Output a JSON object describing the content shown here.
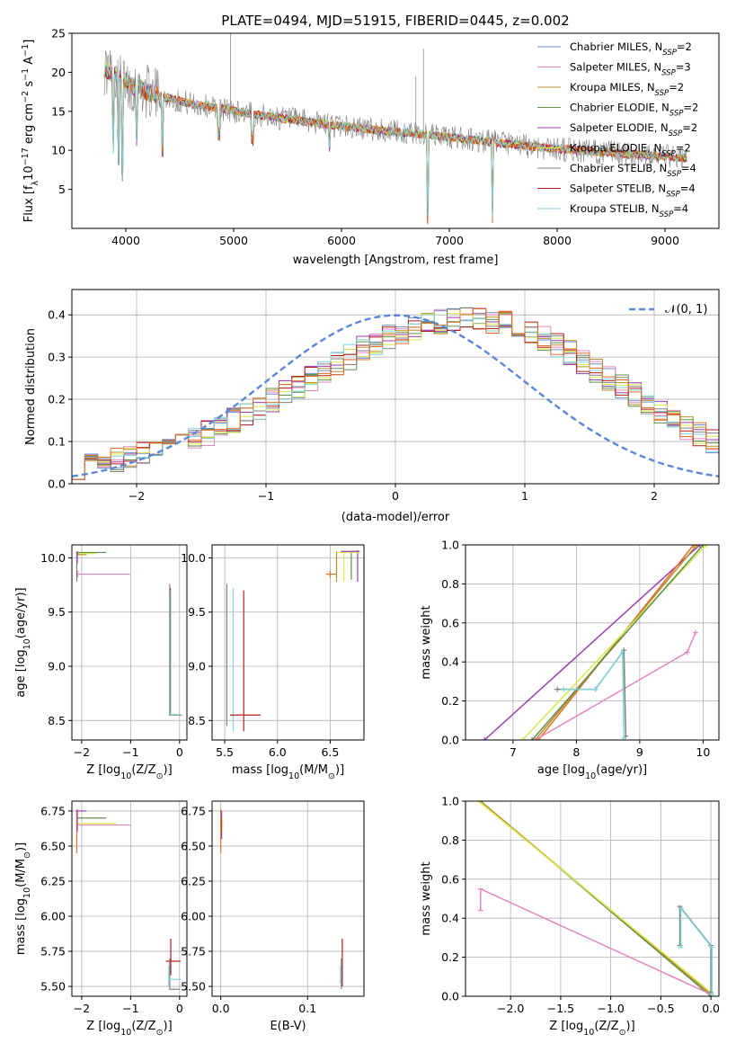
{
  "title": "PLATE=0494, MJD=51915, FIBERID=0445, z=0.002",
  "colors": {
    "blue": "#6a8fd0",
    "pink": "#e587c0",
    "olive": "#b8902a",
    "green": "#5f8f4a",
    "purple": "#9a3fb0",
    "yellow": "#d9e84f",
    "gray": "#808080",
    "red": "#b21f1f",
    "cyan": "#7fd3d6",
    "orange": "#e0702a",
    "dashblue": "#5b87d6"
  },
  "chart_data": [
    {
      "type": "line",
      "title": "PLATE=0494, MJD=51915, FIBERID=0445, z=0.002",
      "xlabel": "wavelength [Angstrom, rest frame]",
      "ylabel_parts": [
        "Flux [f",
        "λ",
        "10",
        "−17",
        " erg cm",
        "−2",
        " s",
        "−1",
        " A",
        "−1",
        "]"
      ],
      "xlim": [
        3500,
        9500
      ],
      "ylim": [
        0,
        25
      ],
      "xticks": [
        "4000",
        "5000",
        "6000",
        "7000",
        "8000",
        "9000"
      ],
      "yticks": [
        "5",
        "10",
        "15",
        "20",
        "25"
      ],
      "grid": false,
      "legend": "top-right",
      "continuum": [
        [
          3800,
          20.5
        ],
        [
          3950,
          19.2
        ],
        [
          4100,
          18.0
        ],
        [
          4300,
          17.0
        ],
        [
          4600,
          16.0
        ],
        [
          4900,
          15.3
        ],
        [
          5200,
          14.6
        ],
        [
          5600,
          13.8
        ],
        [
          6000,
          13.1
        ],
        [
          6400,
          12.5
        ],
        [
          6800,
          12.0
        ],
        [
          7200,
          11.4
        ],
        [
          7600,
          10.7
        ],
        [
          8000,
          10.2
        ],
        [
          8400,
          9.8
        ],
        [
          8800,
          9.4
        ],
        [
          9200,
          9.0
        ]
      ],
      "absorption_lines": [
        [
          3880,
          9.5
        ],
        [
          3934,
          8.0
        ],
        [
          3969,
          6.0
        ],
        [
          4102,
          10.5
        ],
        [
          4340,
          9.0
        ],
        [
          4861,
          11.0
        ],
        [
          5175,
          10.5
        ],
        [
          5890,
          9.5
        ],
        [
          6563,
          11.0
        ],
        [
          7400,
          0.5
        ],
        [
          6800,
          0.5
        ]
      ],
      "legend_entries": [
        {
          "label": "Chabrier MILES, N",
          "sub": "SSP",
          "suffix": "=2",
          "color": "#6a8fd0"
        },
        {
          "label": "Salpeter MILES, N",
          "sub": "SSP",
          "suffix": "=3",
          "color": "#e587c0"
        },
        {
          "label": "Kroupa MILES, N",
          "sub": "SSP",
          "suffix": "=2",
          "color": "#b8902a"
        },
        {
          "label": "Chabrier ELODIE, N",
          "sub": "SSP",
          "suffix": "=2",
          "color": "#5f8f4a"
        },
        {
          "label": "Salpeter ELODIE, N",
          "sub": "SSP",
          "suffix": "=2",
          "color": "#9a3fb0"
        },
        {
          "label": "Kroupa ELODIE, N",
          "sub": "SSP",
          "suffix": "=2",
          "color": "#d9e84f"
        },
        {
          "label": "Chabrier STELIB, N",
          "sub": "SSP",
          "suffix": "=4",
          "color": "#808080"
        },
        {
          "label": "Salpeter STELIB, N",
          "sub": "SSP",
          "suffix": "=4",
          "color": "#b21f1f"
        },
        {
          "label": "Kroupa STELIB, N",
          "sub": "SSP",
          "suffix": "=4",
          "color": "#7fd3d6"
        }
      ]
    },
    {
      "type": "histogram",
      "xlabel": "(data-model)/error",
      "ylabel": "Normed distribution",
      "xlim": [
        -2.5,
        2.5
      ],
      "ylim": [
        0,
        0.46
      ],
      "xticks": [
        "−2",
        "−1",
        "0",
        "1",
        "2"
      ],
      "yticks": [
        "0.0",
        "0.1",
        "0.2",
        "0.3",
        "0.4"
      ],
      "grid": true,
      "legend": "top-right",
      "bin_width": 0.1,
      "mean_profile": [
        0.04,
        0.045,
        0.05,
        0.055,
        0.06,
        0.07,
        0.08,
        0.09,
        0.1,
        0.11,
        0.12,
        0.135,
        0.15,
        0.165,
        0.18,
        0.2,
        0.215,
        0.23,
        0.25,
        0.27,
        0.285,
        0.3,
        0.32,
        0.335,
        0.35,
        0.36,
        0.37,
        0.38,
        0.385,
        0.39,
        0.395,
        0.39,
        0.385,
        0.38,
        0.37,
        0.36,
        0.345,
        0.33,
        0.31,
        0.29,
        0.27,
        0.25,
        0.23,
        0.21,
        0.19,
        0.17,
        0.15,
        0.13,
        0.115,
        0.1
      ],
      "series_colors": [
        "#6a8fd0",
        "#e587c0",
        "#b8902a",
        "#5f8f4a",
        "#9a3fb0",
        "#d9e84f",
        "#808080",
        "#b21f1f",
        "#7fd3d6",
        "#e0702a"
      ],
      "normal_curve": {
        "label": "𝒩(0, 1)",
        "mu": 0,
        "sigma": 1,
        "color": "#5b87d6"
      }
    },
    {
      "type": "errorbar",
      "xlabel_parts": [
        "Z [log",
        "10",
        "(Z/Z",
        "⊙",
        ")]"
      ],
      "ylabel_parts": [
        "age  [log",
        "10",
        "(age/yr)]"
      ],
      "xlim": [
        -2.2,
        0.15
      ],
      "ylim": [
        8.32,
        10.12
      ],
      "xticks": [
        "−2",
        "−1",
        "0"
      ],
      "yticks": [
        "8.5",
        "9.0",
        "9.5",
        "10.0"
      ],
      "grid": true
    },
    {
      "type": "errorbar",
      "xlabel_parts": [
        "mass [log",
        "10",
        "(M/M",
        "⊙",
        ")]"
      ],
      "xlim": [
        5.38,
        6.82
      ],
      "ylim": [
        8.32,
        10.12
      ],
      "xticks": [
        "5.5",
        "6.0",
        "6.5"
      ],
      "yticks": [
        "8.5",
        "9.0",
        "9.5",
        "10.0"
      ],
      "grid": true
    },
    {
      "type": "line",
      "xlabel_parts": [
        "age  [log",
        "10",
        "(age/yr)]"
      ],
      "ylabel": "mass weight",
      "xlim": [
        6.25,
        10.25
      ],
      "ylim": [
        0,
        1.0
      ],
      "xticks": [
        "7",
        "8",
        "9",
        "10"
      ],
      "yticks": [
        "0.0",
        "0.2",
        "0.4",
        "0.6",
        "0.8",
        "1.0"
      ],
      "grid": true
    },
    {
      "type": "errorbar",
      "xlabel_parts": [
        "Z [log",
        "10",
        "(Z/Z",
        "⊙",
        ")]"
      ],
      "ylabel_parts": [
        "mass [log",
        "10",
        "(M/M",
        "⊙",
        ")]"
      ],
      "xlim": [
        -2.2,
        0.15
      ],
      "ylim": [
        5.43,
        6.82
      ],
      "xticks": [
        "−2",
        "−1",
        "0"
      ],
      "yticks": [
        "5.50",
        "5.75",
        "6.00",
        "6.25",
        "6.50",
        "6.75"
      ],
      "grid": true
    },
    {
      "type": "errorbar",
      "xlabel": "E(B-V)",
      "xlim": [
        -0.01,
        0.165
      ],
      "ylim": [
        5.43,
        6.82
      ],
      "xticks": [
        "0.0",
        "0.1"
      ],
      "yticks": [
        "5.50",
        "5.75",
        "6.00",
        "6.25",
        "6.50",
        "6.75"
      ],
      "grid": true
    },
    {
      "type": "line",
      "xlabel_parts": [
        "Z [log",
        "10",
        "(Z/Z",
        "⊙",
        ")]"
      ],
      "ylabel": "mass weight",
      "xlim": [
        -2.45,
        0.08
      ],
      "ylim": [
        0,
        1.0
      ],
      "xticks": [
        "−2.0",
        "−1.5",
        "−1.0",
        "−0.5",
        "0.0"
      ],
      "yticks": [
        "0.0",
        "0.2",
        "0.4",
        "0.6",
        "0.8",
        "1.0"
      ],
      "grid": true
    }
  ]
}
